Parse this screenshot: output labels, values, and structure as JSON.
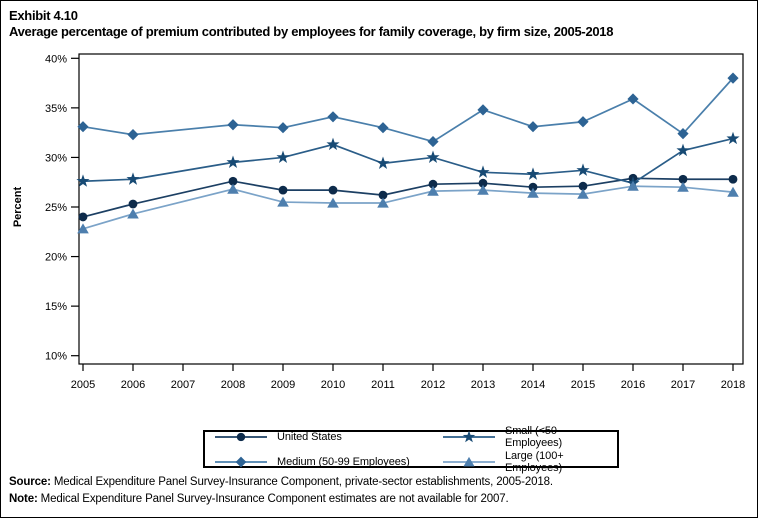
{
  "header": {
    "exhibit": "Exhibit 4.10",
    "title": "Average percentage of premium contributed by employees for family coverage, by firm size, 2005-2018"
  },
  "chart_data": {
    "type": "line",
    "title": "Average percentage of premium contributed by employees for family coverage, by firm size, 2005-2018",
    "xlabel": "",
    "ylabel": "Percent",
    "ylim": [
      10,
      40
    ],
    "ytick_step": 5,
    "ytick_suffix": "%",
    "grid": false,
    "legend_position": "bottom",
    "x": [
      2005,
      2006,
      2007,
      2008,
      2009,
      2010,
      2011,
      2012,
      2013,
      2014,
      2015,
      2016,
      2017,
      2018
    ],
    "missing_x_note": "2007 estimates not available",
    "series": [
      {
        "name": "United States",
        "marker": "circle",
        "color": "#0d2b4b",
        "line_color": "#1c3f63",
        "values": [
          24.0,
          25.3,
          null,
          27.6,
          26.7,
          26.7,
          26.2,
          27.3,
          27.4,
          27.0,
          27.1,
          27.9,
          27.8,
          27.8
        ]
      },
      {
        "name": "Small (<50 Employees)",
        "marker": "star",
        "color": "#174a74",
        "line_color": "#2a5d88",
        "values": [
          27.6,
          27.8,
          null,
          29.5,
          30.0,
          31.3,
          29.4,
          30.0,
          28.5,
          28.3,
          28.7,
          27.4,
          30.7,
          31.9
        ]
      },
      {
        "name": "Medium (50-99 Employees)",
        "marker": "diamond",
        "color": "#2d6394",
        "line_color": "#4a7fab",
        "values": [
          33.1,
          32.3,
          null,
          33.3,
          33.0,
          34.1,
          33.0,
          31.6,
          34.8,
          33.1,
          33.6,
          35.9,
          32.4,
          38.0
        ]
      },
      {
        "name": "Large (100+ Employees)",
        "marker": "triangle",
        "color": "#4e7fae",
        "line_color": "#7ba3c8",
        "values": [
          22.8,
          24.3,
          null,
          26.8,
          25.5,
          25.4,
          25.4,
          26.6,
          26.7,
          26.4,
          26.3,
          27.1,
          27.0,
          26.5
        ]
      }
    ]
  },
  "footer": {
    "source_label": "Source:",
    "source_text": " Medical Expenditure Panel Survey-Insurance Component, private-sector establishments, 2005-2018.",
    "note_label": "Note:",
    "note_text": " Medical Expenditure Panel Survey-Insurance Component estimates are not available for 2007."
  }
}
